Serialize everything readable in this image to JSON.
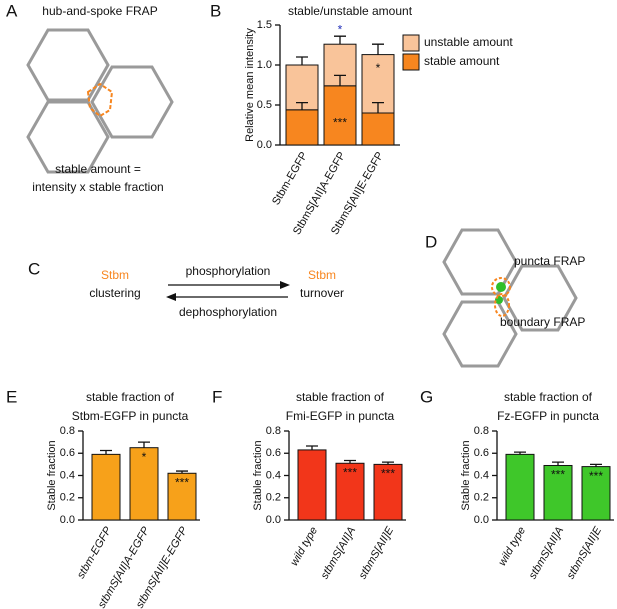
{
  "panel_letters": [
    "A",
    "B",
    "C",
    "D",
    "E",
    "F",
    "G"
  ],
  "panel_a": {
    "title": "hub-and-spoke FRAP",
    "caption": [
      "stable amount =",
      "intensity x stable fraction"
    ]
  },
  "panel_c": {
    "left": {
      "name": "Stbm",
      "state": "clustering"
    },
    "forward": "phosphorylation",
    "backward": "dephosphorylation",
    "right": {
      "name": "Stbm",
      "state": "turnover"
    }
  },
  "panel_d": {
    "labels": [
      "puncta FRAP",
      "boundary FRAP"
    ]
  },
  "chart_data": [
    {
      "type": "stacked_bar",
      "title": [
        "stable/unstable amount"
      ],
      "ylabel": "Relative mean intensity",
      "categories": [
        "Stbm-EGFP",
        "StbmS[AII]A-EGFP",
        "StbmS[AII]E-EGFP"
      ],
      "italic_categories": false,
      "series": [
        {
          "name": "stable amount",
          "color": "#f7861f",
          "values": [
            0.44,
            0.74,
            0.4
          ],
          "errors": [
            0.09,
            0.13,
            0.13
          ],
          "annotations": [
            null,
            "***",
            null
          ]
        },
        {
          "name": "unstable amount",
          "color": "#f9c49a",
          "values": [
            0.56,
            0.52,
            0.73
          ],
          "errors": [
            0.1,
            0.1,
            0.13
          ],
          "annotations": [
            null,
            null,
            "*"
          ]
        }
      ],
      "annotations": [
        null,
        "*",
        null
      ],
      "annotation_color": "#1f2db8",
      "ylim": [
        0,
        1.5
      ],
      "yticks": [
        {
          "value": 0,
          "label": "0.0"
        },
        0.5,
        {
          "value": 1,
          "label": "1.0"
        },
        1.5
      ],
      "legend": "right"
    },
    {
      "type": "bar",
      "title": [
        "stable fraction of",
        "Stbm-EGFP in puncta"
      ],
      "ylabel": "Stable fraction",
      "categories": [
        "stbm-EGFP",
        "stbmS[AII]A-EGFP",
        "stbmS[AII]E-EGFP"
      ],
      "italic_categories": true,
      "color": "#f7a11a",
      "values": [
        0.59,
        0.65,
        0.42
      ],
      "errors": [
        0.035,
        0.05,
        0.02
      ],
      "annotations": [
        null,
        "*",
        "***"
      ],
      "ylim": [
        0,
        0.8
      ],
      "yticks": [
        {
          "value": 0,
          "label": "0.0"
        },
        0.2,
        0.4,
        0.6,
        0.8
      ]
    },
    {
      "type": "bar",
      "title": [
        "stable fraction of",
        "Fmi-EGFP in puncta"
      ],
      "ylabel": "Stable fraction",
      "categories": [
        "wild type",
        "stbmS[AII]A",
        "stbmS[AII]E"
      ],
      "italic_categories": true,
      "color": "#f2361a",
      "values": [
        0.63,
        0.51,
        0.5
      ],
      "errors": [
        0.035,
        0.025,
        0.02
      ],
      "annotations": [
        null,
        "***",
        "***"
      ],
      "ylim": [
        0,
        0.8
      ],
      "yticks": [
        {
          "value": 0,
          "label": "0.0"
        },
        0.2,
        0.4,
        0.6,
        0.8
      ]
    },
    {
      "type": "bar",
      "title": [
        "stable fraction of",
        "Fz-EGFP in puncta"
      ],
      "ylabel": "Stable fraction",
      "categories": [
        "wild type",
        "stbmS[AII]A",
        "stbmS[AII]E"
      ],
      "italic_categories": true,
      "color": "#3fc72a",
      "values": [
        0.59,
        0.49,
        0.48
      ],
      "errors": [
        0.02,
        0.03,
        0.02
      ],
      "annotations": [
        null,
        "***",
        "***"
      ],
      "ylim": [
        0,
        0.8
      ],
      "yticks": [
        {
          "value": 0,
          "label": "0.0"
        },
        0.2,
        0.4,
        0.6,
        0.8
      ]
    }
  ]
}
